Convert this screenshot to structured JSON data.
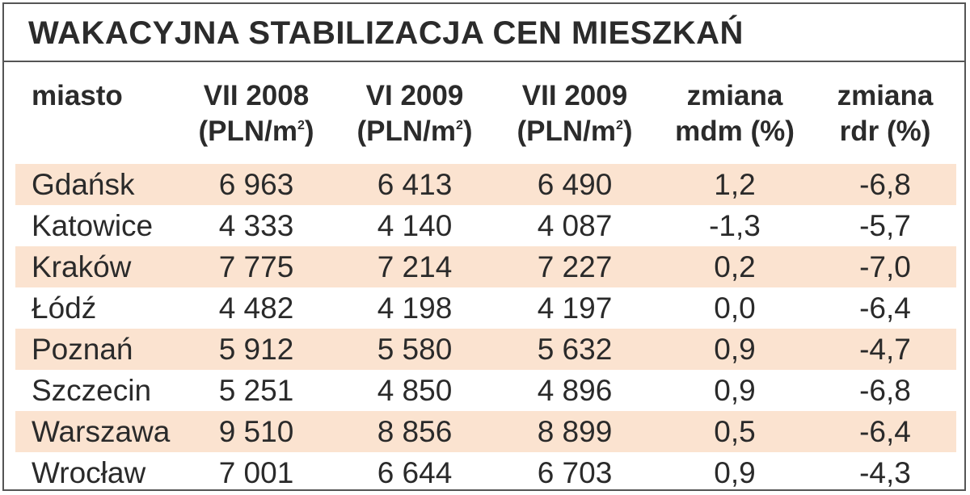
{
  "title": "WAKACYJNA STABILIZACJA CEN MIESZKAŃ",
  "colors": {
    "row_shade": "#fbe3d0",
    "border": "#555555",
    "text": "#2a2a2a"
  },
  "chart_data": {
    "type": "table",
    "title": "WAKACYJNA STABILIZACJA CEN MIESZKAŃ",
    "columns": [
      {
        "line1": "miasto",
        "line2": "",
        "has_sup": false
      },
      {
        "line1": "VII 2008",
        "line2": "(PLN/m",
        "sup": "2",
        "line2_end": ")",
        "has_sup": true
      },
      {
        "line1": "VI 2009",
        "line2": "(PLN/m",
        "sup": "2",
        "line2_end": ")",
        "has_sup": true
      },
      {
        "line1": "VII 2009",
        "line2": "(PLN/m",
        "sup": "2",
        "line2_end": ")",
        "has_sup": true
      },
      {
        "line1": "zmiana",
        "line2": "mdm (%)",
        "has_sup": false
      },
      {
        "line1": "zmiana",
        "line2": "rdr (%)",
        "has_sup": false
      }
    ],
    "rows": [
      [
        "Gdańsk",
        "6 963",
        "6 413",
        "6 490",
        "1,2",
        "-6,8"
      ],
      [
        "Katowice",
        "4 333",
        "4 140",
        "4 087",
        "-1,3",
        "-5,7"
      ],
      [
        "Kraków",
        "7 775",
        "7 214",
        "7 227",
        "0,2",
        "-7,0"
      ],
      [
        "Łódź",
        "4 482",
        "4 198",
        "4 197",
        "0,0",
        "-6,4"
      ],
      [
        "Poznań",
        "5 912",
        "5 580",
        "5 632",
        "0,9",
        "-4,7"
      ],
      [
        "Szczecin",
        "5 251",
        "4 850",
        "4 896",
        "0,9",
        "-6,8"
      ],
      [
        "Warszawa",
        "9 510",
        "8 856",
        "8 899",
        "0,5",
        "-6,4"
      ],
      [
        "Wrocław",
        "7 001",
        "6 644",
        "6 703",
        "0,9",
        "-4,3"
      ]
    ]
  }
}
